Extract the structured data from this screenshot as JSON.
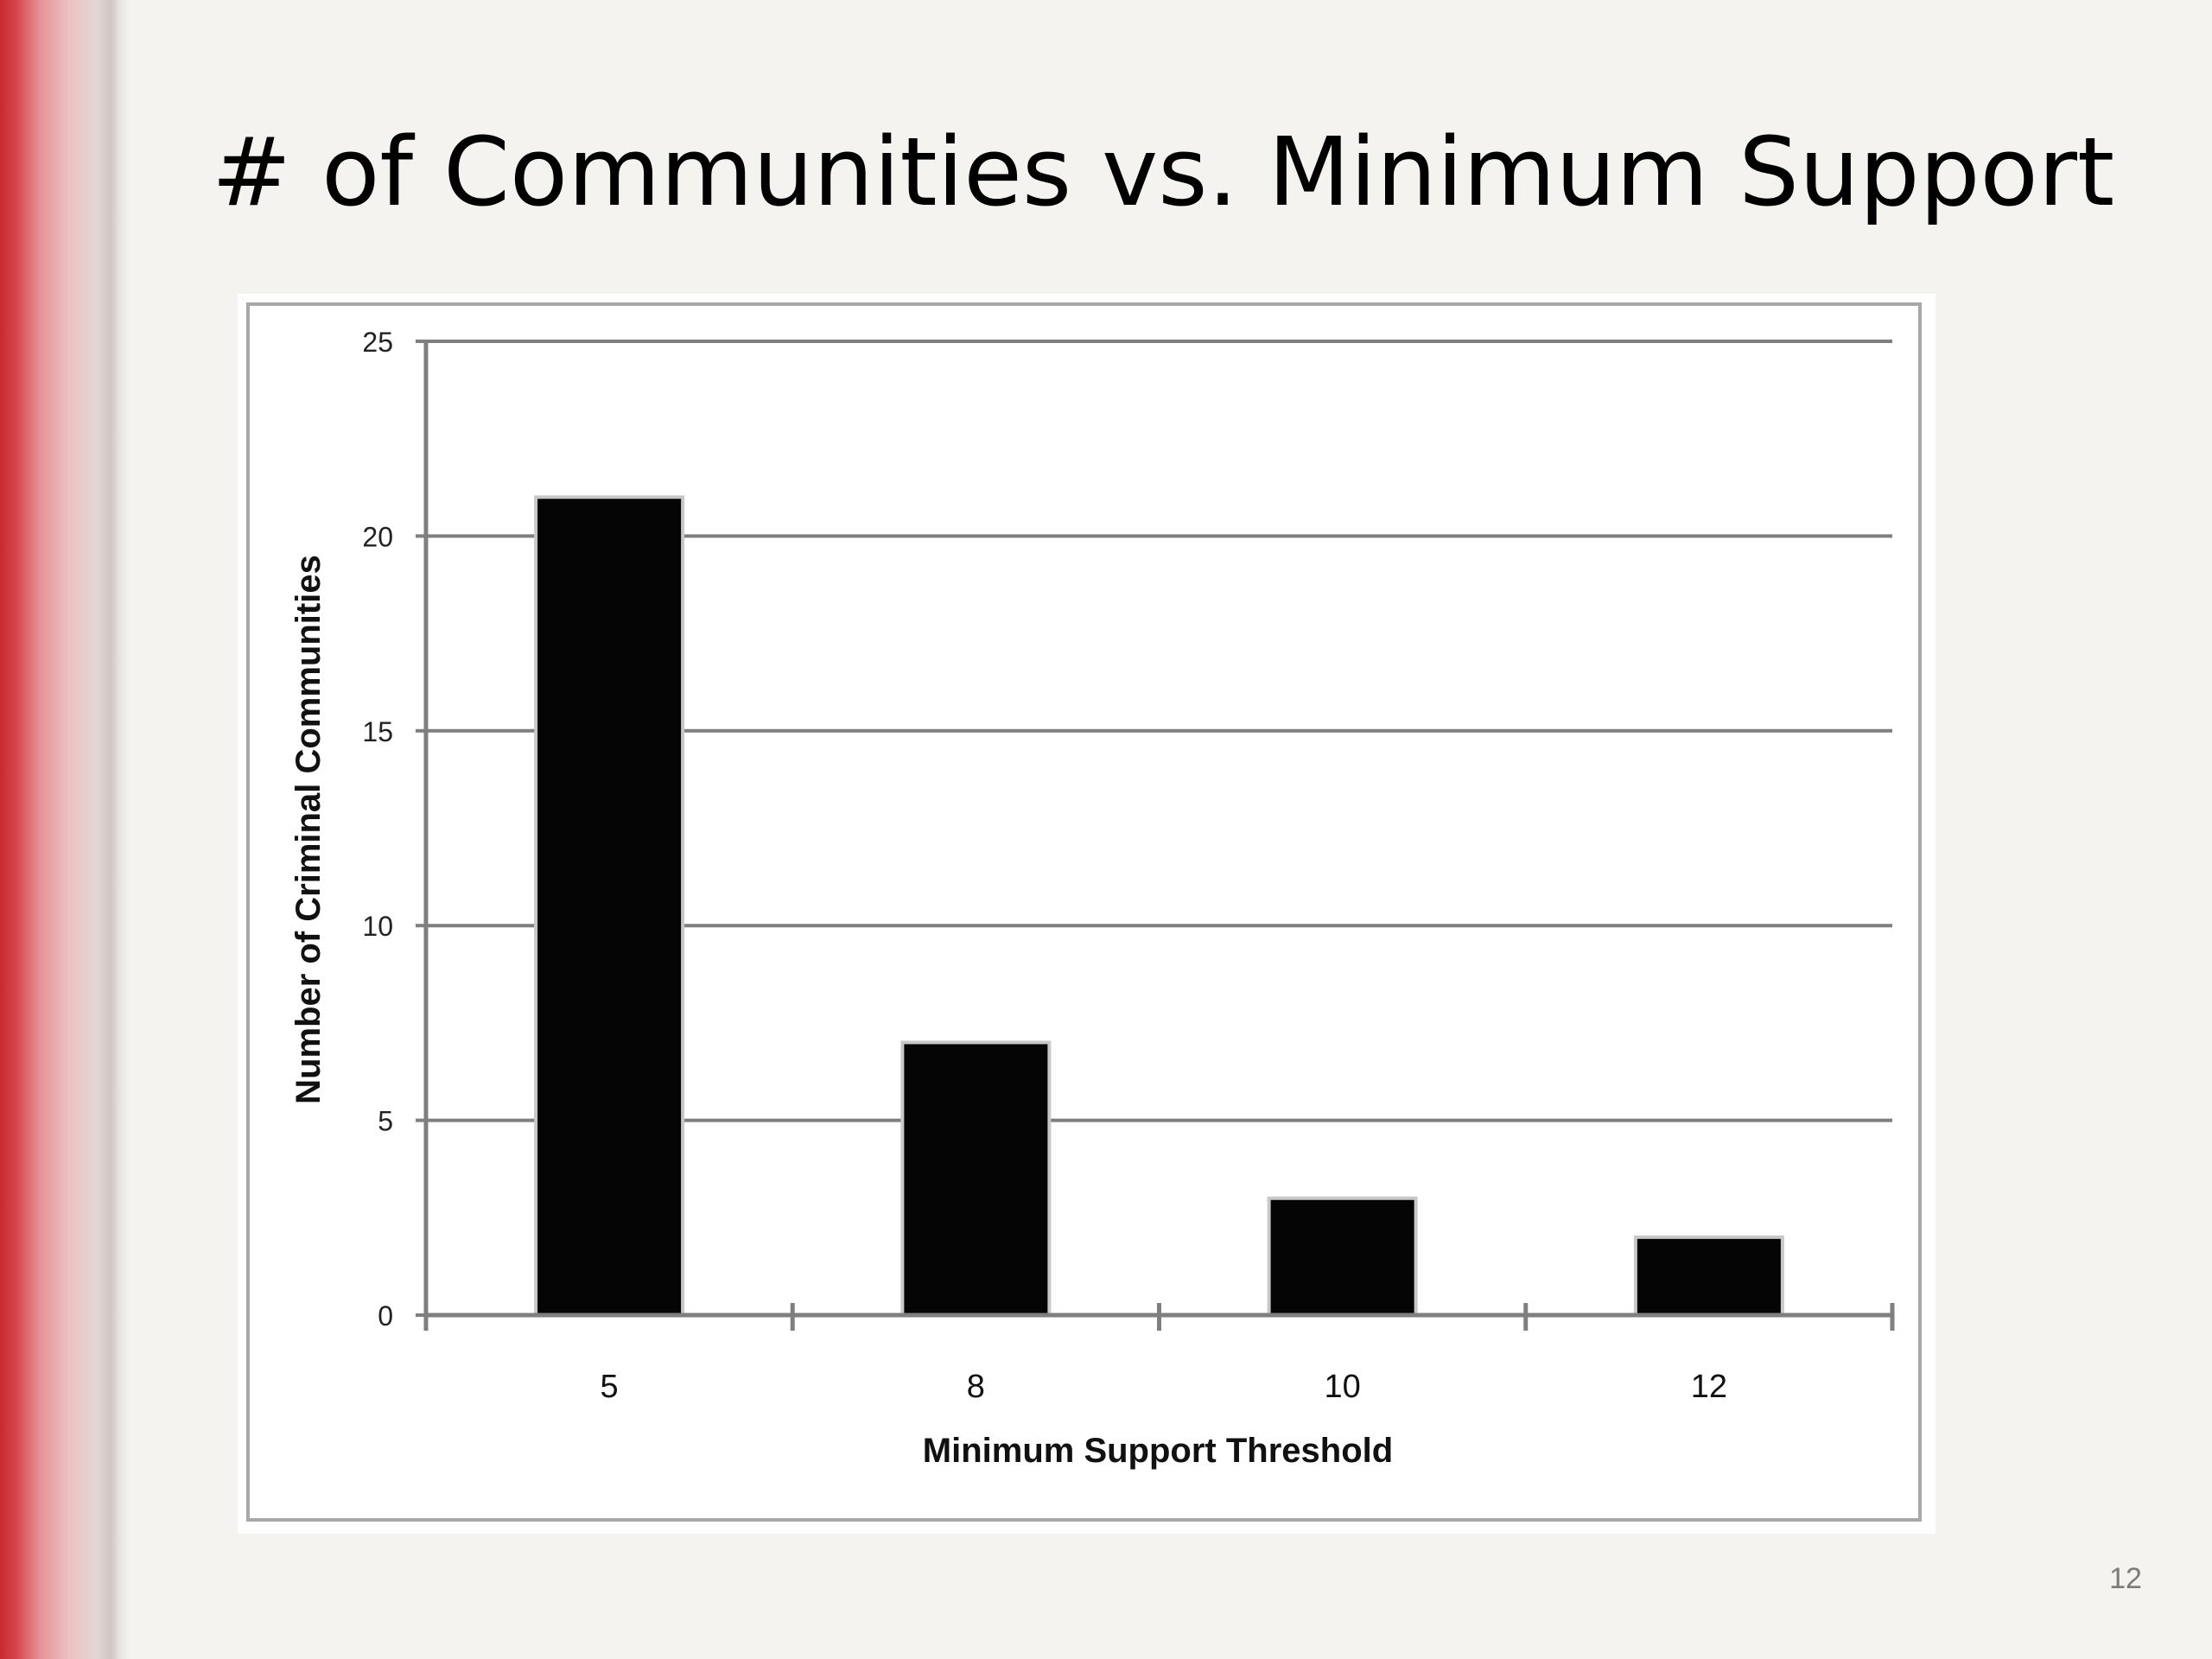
{
  "slide": {
    "title": "# of Communities vs. Minimum Support",
    "page_number": "12"
  },
  "chart_data": {
    "type": "bar",
    "categories": [
      "5",
      "8",
      "10",
      "12"
    ],
    "values": [
      21,
      7,
      3,
      2
    ],
    "title": "",
    "xlabel": "Minimum Support Threshold",
    "ylabel": "Number of Criminal Communities",
    "ylim": [
      0,
      25
    ],
    "yticks": [
      0,
      5,
      10,
      15,
      20,
      25
    ],
    "grid": true,
    "legend": "none",
    "bar_color": "#050505"
  }
}
